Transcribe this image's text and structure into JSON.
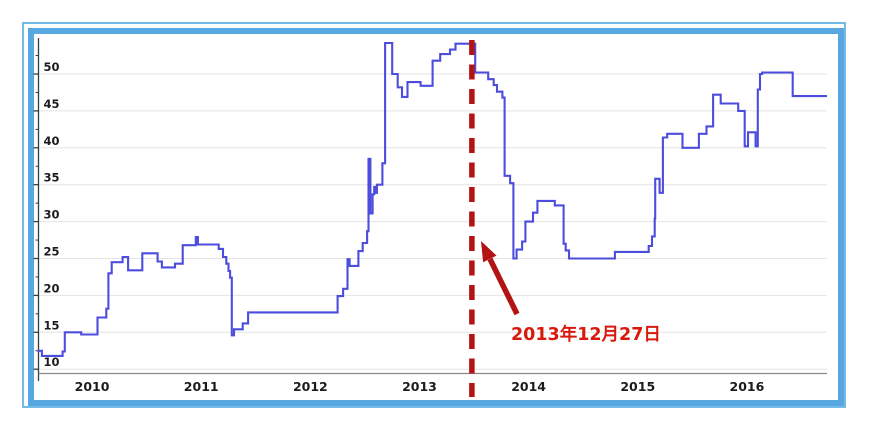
{
  "frame": {
    "outer_border_color": "#74bae8",
    "inner_border_color": "#57a8e0",
    "background": "#ffffff"
  },
  "chart_data": {
    "type": "line",
    "line_style": "step",
    "series": [
      {
        "name": "trend-index",
        "color": "#4d4ddd",
        "points": [
          [
            2010.0,
            12.5
          ],
          [
            2010.04,
            11.8
          ],
          [
            2010.23,
            12.4
          ],
          [
            2010.25,
            15.0
          ],
          [
            2010.4,
            14.7
          ],
          [
            2010.55,
            17.0
          ],
          [
            2010.63,
            18.2
          ],
          [
            2010.65,
            23.0
          ],
          [
            2010.68,
            24.5
          ],
          [
            2010.78,
            25.2
          ],
          [
            2010.83,
            23.4
          ],
          [
            2010.96,
            25.7
          ],
          [
            2011.1,
            24.6
          ],
          [
            2011.14,
            23.8
          ],
          [
            2011.26,
            24.3
          ],
          [
            2011.33,
            26.8
          ],
          [
            2011.45,
            27.9
          ],
          [
            2011.47,
            26.9
          ],
          [
            2011.66,
            26.3
          ],
          [
            2011.7,
            25.2
          ],
          [
            2011.73,
            24.3
          ],
          [
            2011.75,
            23.3
          ],
          [
            2011.765,
            22.4
          ],
          [
            2011.78,
            14.6
          ],
          [
            2011.8,
            15.4
          ],
          [
            2011.88,
            16.2
          ],
          [
            2011.93,
            17.7
          ],
          [
            2012.75,
            19.9
          ],
          [
            2012.8,
            20.9
          ],
          [
            2012.84,
            24.9
          ],
          [
            2012.86,
            24.0
          ],
          [
            2012.94,
            26.0
          ],
          [
            2012.98,
            27.1
          ],
          [
            2013.02,
            28.7
          ],
          [
            2013.033,
            38.5
          ],
          [
            2013.05,
            31.1
          ],
          [
            2013.07,
            33.7
          ],
          [
            2013.085,
            34.7
          ],
          [
            2013.1,
            33.9
          ],
          [
            2013.11,
            35.0
          ],
          [
            2013.16,
            37.9
          ],
          [
            2013.185,
            54.2
          ],
          [
            2013.25,
            50.0
          ],
          [
            2013.3,
            48.2
          ],
          [
            2013.34,
            46.9
          ],
          [
            2013.39,
            48.9
          ],
          [
            2013.51,
            48.4
          ],
          [
            2013.62,
            51.8
          ],
          [
            2013.69,
            52.7
          ],
          [
            2013.78,
            53.3
          ],
          [
            2013.83,
            54.1
          ],
          [
            2014.01,
            50.2
          ],
          [
            2014.13,
            49.3
          ],
          [
            2014.18,
            48.5
          ],
          [
            2014.21,
            47.6
          ],
          [
            2014.26,
            46.8
          ],
          [
            2014.28,
            36.2
          ],
          [
            2014.33,
            35.2
          ],
          [
            2014.36,
            25.0
          ],
          [
            2014.39,
            26.2
          ],
          [
            2014.44,
            27.3
          ],
          [
            2014.47,
            30.0
          ],
          [
            2014.54,
            31.2
          ],
          [
            2014.58,
            32.8
          ],
          [
            2014.74,
            32.2
          ],
          [
            2014.82,
            27.0
          ],
          [
            2014.84,
            26.1
          ],
          [
            2014.87,
            25.0
          ],
          [
            2015.29,
            25.9
          ],
          [
            2015.6,
            26.7
          ],
          [
            2015.63,
            28.0
          ],
          [
            2015.655,
            30.4
          ],
          [
            2015.66,
            35.8
          ],
          [
            2015.7,
            33.9
          ],
          [
            2015.73,
            41.4
          ],
          [
            2015.77,
            41.9
          ],
          [
            2015.91,
            40.0
          ],
          [
            2016.06,
            41.9
          ],
          [
            2016.13,
            42.9
          ],
          [
            2016.19,
            47.2
          ],
          [
            2016.26,
            46.0
          ],
          [
            2016.42,
            45.0
          ],
          [
            2016.48,
            40.2
          ],
          [
            2016.51,
            42.1
          ],
          [
            2016.58,
            40.2
          ],
          [
            2016.6,
            47.9
          ],
          [
            2016.62,
            50.0
          ],
          [
            2016.64,
            50.2
          ],
          [
            2016.92,
            47.0
          ]
        ]
      }
    ],
    "x_tick_years": [
      2010,
      2011,
      2012,
      2013,
      2014,
      2015,
      2016
    ],
    "y_ticks": [
      10,
      15,
      20,
      25,
      30,
      35,
      40,
      45,
      50
    ],
    "y_minor_step": 2.5,
    "x_range_years": [
      2010.0,
      2017.25
    ],
    "y_range": [
      9.4,
      54.9
    ],
    "grid": true,
    "grid_color": "#e4e4e4",
    "x_axis_color": "#8a8a8a",
    "y_axis_color": "#3a3a3a",
    "tick_label_color": "#1c1c1c",
    "annotation": {
      "label": "2013年12月27日",
      "at_year": 2013.98,
      "text_color": "#d8190c",
      "arrow_color": "#b31312",
      "dashed_line_color": "#b31312"
    }
  }
}
